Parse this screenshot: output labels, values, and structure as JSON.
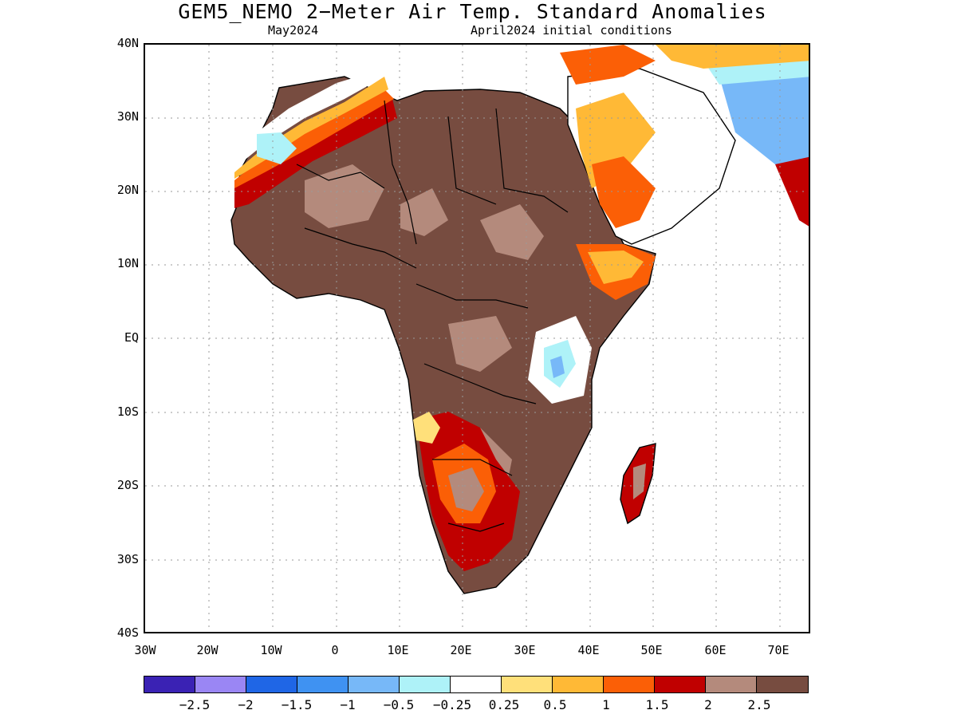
{
  "title": "GEM5_NEMO 2−Meter Air Temp. Standard Anomalies",
  "subtitle_left": "May2024",
  "subtitle_right": "April2024 initial conditions",
  "lat_labels": [
    "40N",
    "30N",
    "20N",
    "10N",
    "EQ",
    "10S",
    "20S",
    "30S",
    "40S"
  ],
  "lon_labels": [
    "30W",
    "20W",
    "10W",
    "0",
    "10E",
    "20E",
    "30E",
    "40E",
    "50E",
    "60E",
    "70E"
  ],
  "legend": {
    "colors": [
      "#3a22b4",
      "#9a86f4",
      "#1f66e6",
      "#3f92f2",
      "#77b8f8",
      "#aef2f8",
      "#ffffff",
      "#ffe07a",
      "#ffb936",
      "#fb5f06",
      "#c00000",
      "#b48a7c",
      "#774c40"
    ],
    "labels": [
      "−2.5",
      "−2",
      "−1.5",
      "−1",
      "−0.5",
      "−0.25",
      "0.25",
      "0.5",
      "1",
      "1.5",
      "2",
      "2.5"
    ]
  }
}
